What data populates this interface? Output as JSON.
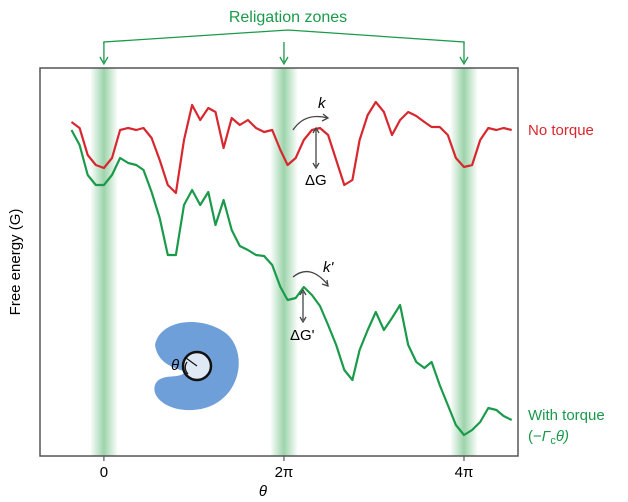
{
  "chart_data": {
    "type": "line",
    "title": "Religation zones",
    "xlabel": "θ",
    "ylabel": "Free energy (G)",
    "x": [
      -0.36,
      -0.27,
      -0.18,
      -0.09,
      0,
      0.09,
      0.18,
      0.27,
      0.36,
      0.44,
      0.53,
      0.62,
      0.71,
      0.8,
      0.89,
      0.98,
      1.07,
      1.16,
      1.24,
      1.33,
      1.42,
      1.51,
      1.6,
      1.69,
      1.78,
      1.87,
      1.96,
      2.04,
      2.13,
      2.22,
      2.31,
      2.4,
      2.49,
      2.58,
      2.67,
      2.76,
      2.84,
      2.93,
      3.02,
      3.11,
      3.2,
      3.29,
      3.38,
      3.47,
      3.56,
      3.64,
      3.73,
      3.82,
      3.91,
      4,
      4.09,
      4.18,
      4.27,
      4.36,
      4.44,
      4.53
    ],
    "series": [
      {
        "name": "No torque",
        "color": "#d7282f",
        "values": [
          334,
          328,
          301,
          291,
          288,
          298,
          326,
          328,
          326,
          328,
          318,
          296,
          271,
          263,
          316,
          351,
          336,
          348,
          344,
          308,
          338,
          331,
          336,
          328,
          324,
          326,
          306,
          291,
          298,
          316,
          326,
          328,
          321,
          296,
          271,
          276,
          316,
          341,
          354,
          344,
          321,
          336,
          344,
          340,
          334,
          329,
          329,
          321,
          298,
          289,
          291,
          316,
          328,
          326,
          328,
          326
        ]
      },
      {
        "name": "With torque",
        "color": "#1a9a4a",
        "values": [
          326,
          311,
          281,
          271,
          271,
          281,
          298,
          293,
          291,
          286,
          264,
          238,
          201,
          201,
          251,
          266,
          251,
          264,
          231,
          256,
          226,
          210,
          206,
          201,
          200,
          191,
          169,
          156,
          158,
          169,
          161,
          150,
          131,
          111,
          86,
          76,
          106,
          126,
          144,
          126,
          138,
          151,
          111,
          94,
          88,
          94,
          71,
          51,
          31,
          21,
          26,
          34,
          48,
          46,
          40,
          36
        ]
      }
    ],
    "torque_formula": [
      "(−",
      "Γ",
      "c",
      "θ)"
    ],
    "annotations": {
      "k": "k",
      "dG": "ΔG",
      "k2": "k'",
      "dG2": "ΔG'",
      "theta_inset": "θ"
    },
    "bands": [
      0,
      2,
      4
    ],
    "xlim": [
      -0.71,
      4.6
    ],
    "xticks": [
      0,
      {
        "value": 2,
        "label": "2π"
      },
      {
        "value": 4,
        "label": "4π"
      }
    ],
    "ylim": [
      0,
      388
    ]
  }
}
